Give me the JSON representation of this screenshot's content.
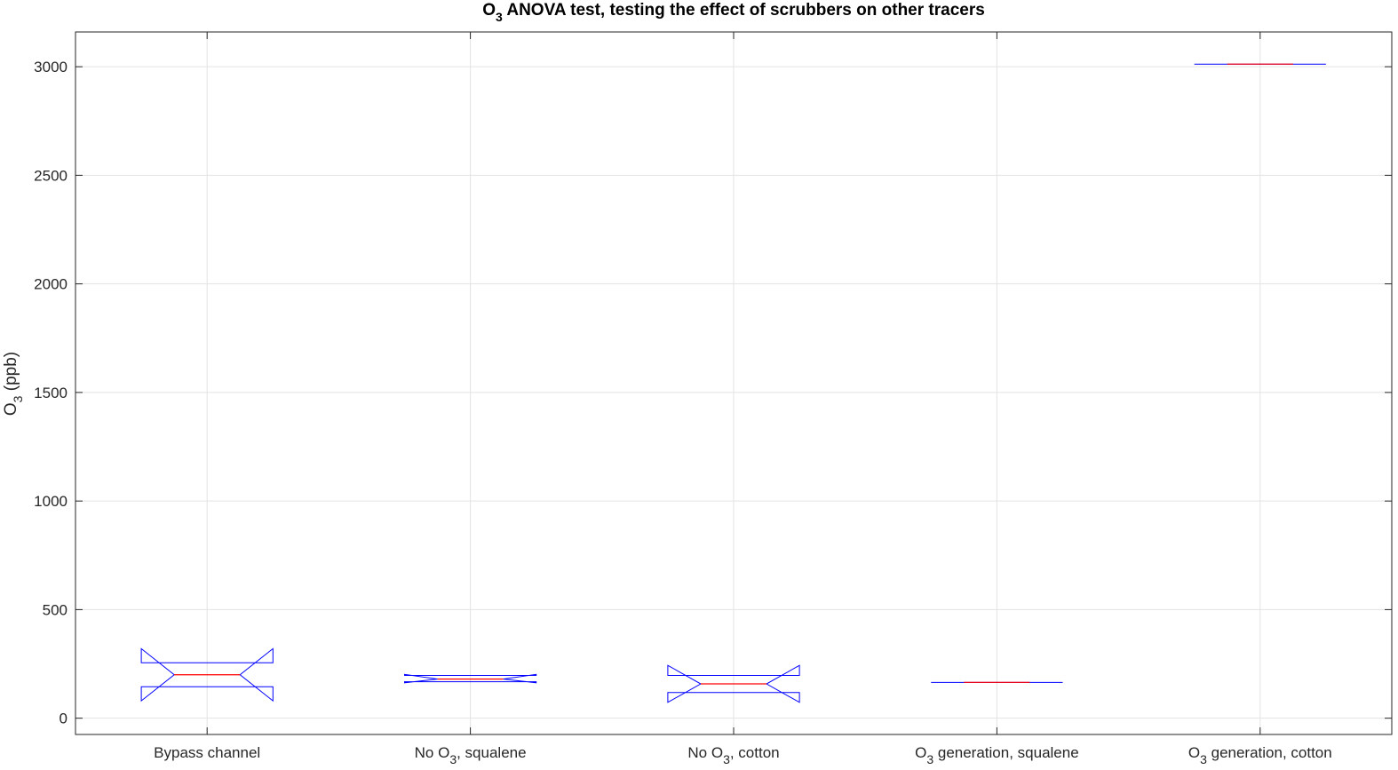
{
  "chart_data": {
    "type": "box",
    "title": {
      "prefix": "O",
      "sub": "3",
      "suffix": " ANOVA test, testing the effect of scrubbers on other tracers"
    },
    "ylabel": {
      "prefix": "O",
      "sub": "3",
      "suffix": " (ppb)"
    },
    "xlabel": "",
    "ylim": [
      -75,
      3160
    ],
    "yticks": [
      0,
      500,
      1000,
      1500,
      2000,
      2500,
      3000
    ],
    "grid": true,
    "notched": true,
    "box_color": "#0000ff",
    "median_color": "#ff0000",
    "groups": [
      {
        "label": {
          "prefix": "Bypass channel",
          "sub": "",
          "suffix": ""
        },
        "q1": 145,
        "median": 200,
        "q3": 255,
        "notch_low": 80,
        "notch_high": 320
      },
      {
        "label": {
          "prefix": "No O",
          "sub": "3",
          "suffix": ", squalene"
        },
        "q1": 168,
        "median": 180,
        "q3": 197,
        "notch_low": 163,
        "notch_high": 202
      },
      {
        "label": {
          "prefix": "No O",
          "sub": "3",
          "suffix": ", cotton"
        },
        "q1": 118,
        "median": 158,
        "q3": 197,
        "notch_low": 73,
        "notch_high": 243
      },
      {
        "label": {
          "prefix": "O",
          "sub": "3",
          "suffix": " generation, squalene"
        },
        "q1": 165,
        "median": 165,
        "q3": 165,
        "notch_low": 165,
        "notch_high": 165
      },
      {
        "label": {
          "prefix": "O",
          "sub": "3",
          "suffix": " generation, cotton"
        },
        "q1": 3012,
        "median": 3012,
        "q3": 3012,
        "notch_low": 3012,
        "notch_high": 3012
      }
    ]
  }
}
